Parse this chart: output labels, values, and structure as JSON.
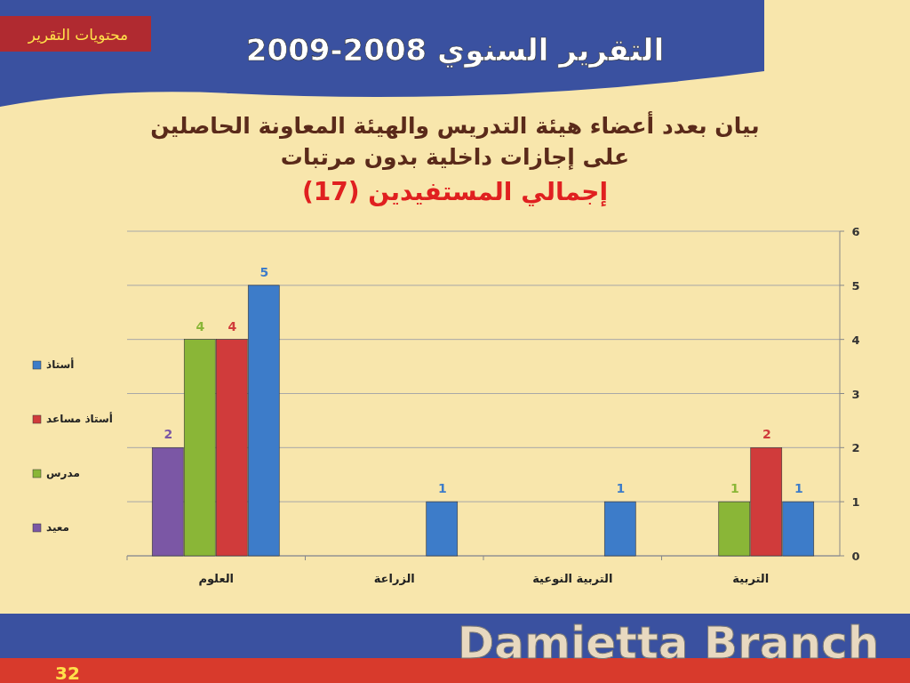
{
  "chart_data": {
    "type": "bar",
    "title": "التقرير السنوي 2008-2009",
    "subtitle": "بيان بعدد أعضاء هيئة التدريس والهيئة المعاونة الحاصلين على إجازات داخلية بدون مرتبات",
    "annotations": [
      "إجمالي المستفيدين (17)",
      "محتويات التقرير",
      "Damietta Branch",
      "32"
    ],
    "categories": [
      "العلوم",
      "الزراعة",
      "التربية النوعية",
      "التربية"
    ],
    "series": [
      {
        "name": "معيد",
        "color": "#7b57a5",
        "values": [
          2,
          null,
          null,
          null
        ]
      },
      {
        "name": "مدرس",
        "color": "#8ab637",
        "values": [
          4,
          null,
          null,
          1
        ]
      },
      {
        "name": "أستاذ مساعد",
        "color": "#d03b3b",
        "values": [
          4,
          null,
          null,
          2
        ]
      },
      {
        "name": "أستاذ",
        "color": "#3d7cc9",
        "values": [
          5,
          1,
          1,
          1
        ]
      }
    ],
    "ylim": [
      0,
      6
    ],
    "yticks": [
      0,
      1,
      2,
      3,
      4,
      5,
      6
    ],
    "grid": "y",
    "legend": "left",
    "data_labels": true
  }
}
